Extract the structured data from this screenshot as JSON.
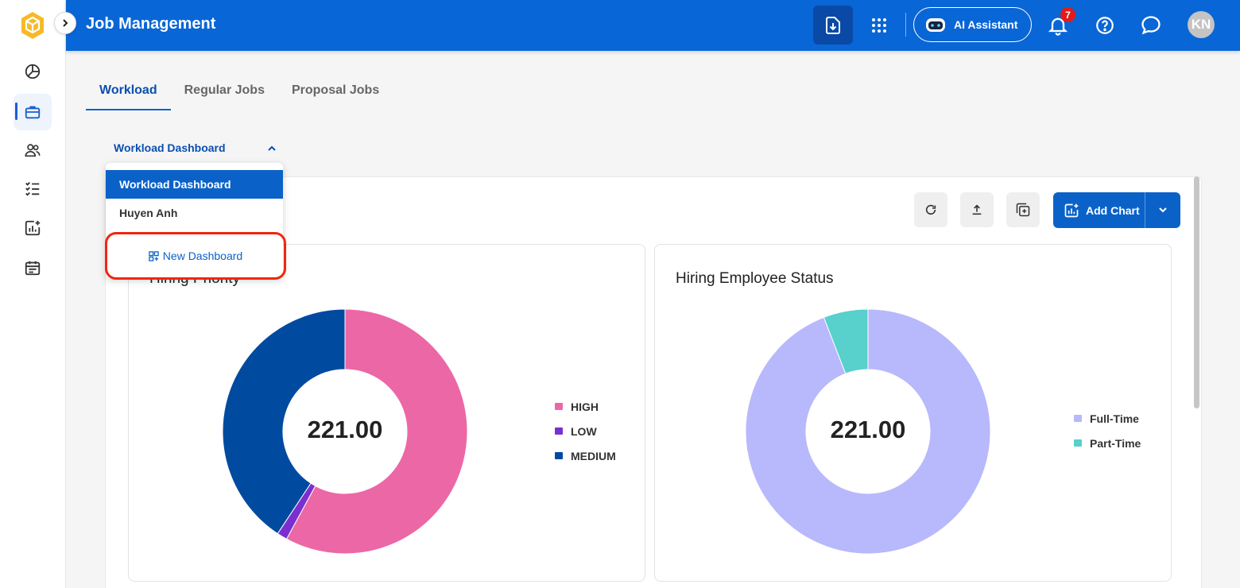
{
  "header": {
    "title": "Job Management",
    "ai_assistant_label": "AI Assistant",
    "notification_count": "7",
    "avatar_initials": "KN"
  },
  "tabs": [
    {
      "label": "Workload",
      "active": true
    },
    {
      "label": "Regular Jobs",
      "active": false
    },
    {
      "label": "Proposal Jobs",
      "active": false
    }
  ],
  "dashboard_select": {
    "current": "Workload Dashboard",
    "options": [
      "Workload Dashboard",
      "Huyen Anh"
    ],
    "new_dashboard_label": "New Dashboard"
  },
  "toolbar": {
    "add_chart_label": "Add Chart"
  },
  "colors": {
    "brand": "#0966d6",
    "high": "#ec67a6",
    "low": "#7b2fd0",
    "medium": "#004aa0",
    "full_time": "#b8b8fc",
    "part_time": "#58d0cb"
  },
  "chart_data": [
    {
      "type": "pie",
      "title": "Hiring Priority",
      "center_value": "221.00",
      "categories": [
        "HIGH",
        "LOW",
        "MEDIUM"
      ],
      "values": [
        128,
        3,
        90
      ],
      "legend_position": "right"
    },
    {
      "type": "pie",
      "title": "Hiring Employee Status",
      "center_value": "221.00",
      "categories": [
        "Full-Time",
        "Part-Time"
      ],
      "values": [
        208,
        13
      ],
      "legend_position": "right"
    }
  ]
}
